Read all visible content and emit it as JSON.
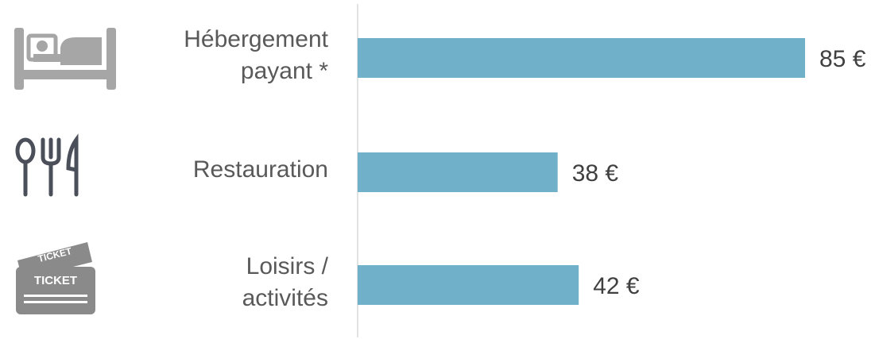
{
  "chart_data": {
    "type": "bar",
    "orientation": "horizontal",
    "categories": [
      "Hébergement\npayant *",
      "Restauration",
      "Loisirs  /\nactivités"
    ],
    "values": [
      85,
      38,
      42
    ],
    "value_labels": [
      "85 €",
      "38 €",
      "42 €"
    ],
    "color": "#70b0c8"
  }
}
